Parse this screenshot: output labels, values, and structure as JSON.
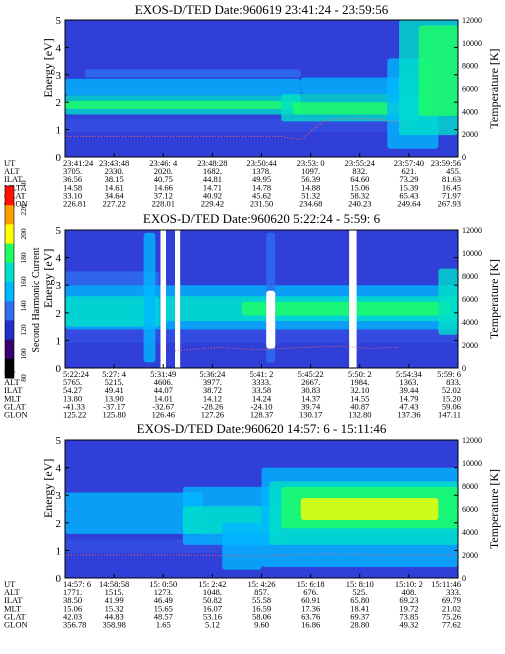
{
  "figure": {
    "colorbar": {
      "label": "Second Harmonic Current",
      "ticks": [
        "80",
        "100",
        "120",
        "140",
        "160",
        "180",
        "200",
        "220",
        "240"
      ],
      "colors": [
        "#000000",
        "#3a0070",
        "#2030c8",
        "#2f6ff0",
        "#00b8ff",
        "#00e0c8",
        "#20ff60",
        "#ffff00",
        "#ffa000",
        "#ff1000"
      ]
    },
    "ephemeris_labels": [
      "UT",
      "ALT",
      "ILAT",
      "MLT",
      "GLAT",
      "GLON"
    ]
  },
  "chart_data": [
    {
      "type": "heatmap",
      "title": "EXOS-D/TED   Date:960619  23:41:24 - 23:59:56",
      "ylabel": "Energy [eV]",
      "ylabel_right": "Temperature [K]",
      "ylim": [
        0,
        5
      ],
      "yticks": [
        "0",
        "1",
        "2",
        "3",
        "4",
        "5"
      ],
      "ylim_right": [
        0,
        12000
      ],
      "yticks_right": [
        "0",
        "2000",
        "4000",
        "6000",
        "8000",
        "10000",
        "12000"
      ],
      "x_ticks": [
        {
          "UT": "23:41:24",
          "ALT": "3705.",
          "ILAT": "36.56",
          "MLT": "14.58",
          "GLAT": "33.10",
          "GLON": "226.81"
        },
        {
          "UT": "23:43:48",
          "ALT": "2330.",
          "ILAT": "38.15",
          "MLT": "14.61",
          "GLAT": "34.64",
          "GLON": "227.22"
        },
        {
          "UT": "23:46: 4",
          "ALT": "2020.",
          "ILAT": "40.75",
          "MLT": "14.66",
          "GLAT": "37.12",
          "GLON": "228.01"
        },
        {
          "UT": "23:48:28",
          "ALT": "1682.",
          "ILAT": "44.81",
          "MLT": "14.71",
          "GLAT": "40.92",
          "GLON": "229.42"
        },
        {
          "UT": "23:50:44",
          "ALT": "1378.",
          "ILAT": "49.95",
          "MLT": "14.78",
          "GLAT": "45.62",
          "GLON": "231.50"
        },
        {
          "UT": "23:53: 0",
          "ALT": "1097.",
          "ILAT": "56.39",
          "MLT": "14.88",
          "GLAT": "51.32",
          "GLON": "234.68"
        },
        {
          "UT": "23:55:24",
          "ALT": "832.",
          "ILAT": "64.60",
          "MLT": "15.06",
          "GLAT": "58.32",
          "GLON": "240.23"
        },
        {
          "UT": "23:57:40",
          "ALT": "621.",
          "ILAT": "73.29",
          "MLT": "15.39",
          "GLAT": "65.43",
          "GLON": "249.64"
        },
        {
          "UT": "23:59:56",
          "ALT": "455.",
          "ILAT": "81.63",
          "MLT": "16.45",
          "GLAT": "71.97",
          "GLON": "267.93"
        }
      ],
      "bands": [
        {
          "x0": 0.0,
          "x1": 0.6,
          "y0": 2.25,
          "y1": 2.85,
          "level": 4
        },
        {
          "x0": 0.0,
          "x1": 0.6,
          "y0": 1.55,
          "y1": 2.25,
          "level": 5
        },
        {
          "x0": 0.0,
          "x1": 0.6,
          "y0": 1.75,
          "y1": 2.05,
          "level": 6
        },
        {
          "x0": 0.05,
          "x1": 0.6,
          "y0": 2.9,
          "y1": 3.2,
          "level": 3
        },
        {
          "x0": 0.55,
          "x1": 0.9,
          "y0": 1.3,
          "y1": 2.3,
          "level": 5
        },
        {
          "x0": 0.58,
          "x1": 0.85,
          "y0": 1.55,
          "y1": 2.0,
          "level": 6
        },
        {
          "x0": 0.6,
          "x1": 0.9,
          "y0": 2.3,
          "y1": 2.9,
          "level": 4
        },
        {
          "x0": 0.82,
          "x1": 0.95,
          "y0": 0.3,
          "y1": 3.6,
          "level": 4
        },
        {
          "x0": 0.85,
          "x1": 1.0,
          "y0": 0.8,
          "y1": 5.0,
          "level": 5
        },
        {
          "x0": 0.9,
          "x1": 1.0,
          "y0": 1.5,
          "y1": 4.8,
          "level": 6
        }
      ],
      "vstripes": [],
      "temperature_trace": {
        "x": [
          0.0,
          0.55,
          0.6,
          0.66,
          0.72,
          0.8,
          0.86
        ],
        "y": [
          1800,
          1800,
          1500,
          3200,
          3400,
          3300,
          3000
        ]
      }
    },
    {
      "type": "heatmap",
      "title": "EXOS-D/TED   Date:960620  5:22:24 - 5:59: 6",
      "ylabel": "Energy [eV]",
      "ylabel_right": "Temperature [K]",
      "ylim": [
        0,
        5
      ],
      "yticks": [
        "0",
        "1",
        "2",
        "3",
        "4",
        "5"
      ],
      "ylim_right": [
        0,
        12000
      ],
      "yticks_right": [
        "0",
        "2000",
        "4000",
        "6000",
        "8000",
        "10000",
        "12000"
      ],
      "x_ticks": [
        {
          "UT": "5:22:24",
          "ALT": "5765.",
          "ILAT": "54.27",
          "MLT": "13.80",
          "GLAT": "-41.33",
          "GLON": "125.22"
        },
        {
          "UT": "5:27: 4",
          "ALT": "5215.",
          "ILAT": "49.41",
          "MLT": "13.90",
          "GLAT": "-37.17",
          "GLON": "125.80"
        },
        {
          "UT": "5:31:49",
          "ALT": "4606.",
          "ILAT": "44.07",
          "MLT": "14.01",
          "GLAT": "-32.67",
          "GLON": "126.46"
        },
        {
          "UT": "5:36:24",
          "ALT": "3977.",
          "ILAT": "38.72",
          "MLT": "14.12",
          "GLAT": "-28.26",
          "GLON": "127.26"
        },
        {
          "UT": "5:41: 2",
          "ALT": "3333.",
          "ILAT": "33.58",
          "MLT": "14.24",
          "GLAT": "-24.10",
          "GLON": "128.37"
        },
        {
          "UT": "5:45:22",
          "ALT": "2667.",
          "ILAT": "30.83",
          "MLT": "14.37",
          "GLAT": "39.74",
          "GLON": "130.17"
        },
        {
          "UT": "5:50: 2",
          "ALT": "1984.",
          "ILAT": "32.10",
          "MLT": "14.55",
          "GLAT": "40.87",
          "GLON": "132.80"
        },
        {
          "UT": "5:54:34",
          "ALT": "1363.",
          "ILAT": "39.44",
          "MLT": "14.79",
          "GLAT": "47.43",
          "GLON": "137.36"
        },
        {
          "UT": "5:59: 6",
          "ALT": "833.",
          "ILAT": "52.02",
          "MLT": "15.20",
          "GLAT": "59.06",
          "GLON": "147.11"
        }
      ],
      "bands": [
        {
          "x0": 0.0,
          "x1": 1.0,
          "y0": 1.4,
          "y1": 3.0,
          "level": 4
        },
        {
          "x0": 0.0,
          "x1": 0.24,
          "y0": 1.5,
          "y1": 2.6,
          "level": 5
        },
        {
          "x0": 0.25,
          "x1": 1.0,
          "y0": 1.7,
          "y1": 2.6,
          "level": 5
        },
        {
          "x0": 0.45,
          "x1": 0.98,
          "y0": 1.9,
          "y1": 2.4,
          "level": 6
        },
        {
          "x0": 0.0,
          "x1": 0.24,
          "y0": 3.0,
          "y1": 3.5,
          "level": 3
        },
        {
          "x0": 0.95,
          "x1": 1.0,
          "y0": 1.2,
          "y1": 3.6,
          "level": 5
        },
        {
          "x0": 0.2,
          "x1": 0.23,
          "y0": 0.2,
          "y1": 4.9,
          "level": 4
        },
        {
          "x0": 0.512,
          "x1": 0.535,
          "y0": 0.2,
          "y1": 4.9,
          "level": 3
        }
      ],
      "vstripes": [
        {
          "x0": 0.243,
          "x1": 0.257,
          "color": "#ffffff"
        },
        {
          "x0": 0.28,
          "x1": 0.293,
          "color": "#ffffff"
        },
        {
          "x0": 0.723,
          "x1": 0.742,
          "color": "#ffffff"
        },
        {
          "x0": 0.512,
          "x1": 0.535,
          "y0": 0.7,
          "y1": 2.8,
          "color": "#ffffff"
        }
      ],
      "temperature_trace": {
        "x": [
          0.28,
          0.35,
          0.4,
          0.48,
          0.55,
          0.62,
          0.7,
          0.78,
          0.85
        ],
        "y": [
          1500,
          1700,
          1800,
          1600,
          1700,
          1800,
          1900,
          1700,
          1800
        ]
      }
    },
    {
      "type": "heatmap",
      "title": "EXOS-D/TED   Date:960620  14:57: 6 - 15:11:46",
      "ylabel": "Energy [eV]",
      "ylabel_right": "Temperature [K]",
      "ylim": [
        0,
        5
      ],
      "yticks": [
        "0",
        "1",
        "2",
        "3",
        "4",
        "5"
      ],
      "ylim_right": [
        0,
        12000
      ],
      "yticks_right": [
        "0",
        "2000",
        "4000",
        "6000",
        "8000",
        "10000",
        "12000"
      ],
      "x_ticks": [
        {
          "UT": "14:57: 6",
          "ALT": "1771.",
          "ILAT": "38.50",
          "MLT": "15.06",
          "GLAT": "42.03",
          "GLON": "356.78"
        },
        {
          "UT": "14:58:58",
          "ALT": "1515.",
          "ILAT": "41.99",
          "MLT": "15.32",
          "GLAT": "44.83",
          "GLON": "358.98"
        },
        {
          "UT": "15: 0:50",
          "ALT": "1273.",
          "ILAT": "46.49",
          "MLT": "15.65",
          "GLAT": "48.57",
          "GLON": "1.65"
        },
        {
          "UT": "15: 2:42",
          "ALT": "1048.",
          "ILAT": "50.82",
          "MLT": "16.07",
          "GLAT": "53.16",
          "GLON": "5.12"
        },
        {
          "UT": "15: 4:26",
          "ALT": "857.",
          "ILAT": "55.58",
          "MLT": "16.59",
          "GLAT": "58.06",
          "GLON": "9.60"
        },
        {
          "UT": "15: 6:18",
          "ALT": "676.",
          "ILAT": "60.91",
          "MLT": "17.36",
          "GLAT": "63.76",
          "GLON": "16.86"
        },
        {
          "UT": "15: 8:10",
          "ALT": "525.",
          "ILAT": "65.80",
          "MLT": "18.41",
          "GLAT": "69.37",
          "GLON": "28.80"
        },
        {
          "UT": "15:10: 2",
          "ALT": "408.",
          "ILAT": "69.23",
          "MLT": "19.72",
          "GLAT": "73.85",
          "GLON": "49.32"
        },
        {
          "UT": "15:11:46",
          "ALT": "333.",
          "ILAT": "69.79",
          "MLT": "21.02",
          "GLAT": "75.26",
          "GLON": "77.62"
        }
      ],
      "bands": [
        {
          "x0": 0.0,
          "x1": 0.35,
          "y0": 2.4,
          "y1": 3.1,
          "level": 4
        },
        {
          "x0": 0.0,
          "x1": 0.35,
          "y0": 1.6,
          "y1": 2.4,
          "level": 4
        },
        {
          "x0": 0.3,
          "x1": 0.55,
          "y0": 1.2,
          "y1": 3.3,
          "level": 4
        },
        {
          "x0": 0.3,
          "x1": 0.55,
          "y0": 1.6,
          "y1": 2.6,
          "level": 5
        },
        {
          "x0": 0.5,
          "x1": 1.0,
          "y0": 0.4,
          "y1": 4.0,
          "level": 4
        },
        {
          "x0": 0.52,
          "x1": 1.0,
          "y0": 1.2,
          "y1": 3.5,
          "level": 5
        },
        {
          "x0": 0.55,
          "x1": 1.0,
          "y0": 1.8,
          "y1": 3.3,
          "level": 6
        },
        {
          "x0": 0.6,
          "x1": 0.95,
          "y0": 2.1,
          "y1": 2.9,
          "level": 7
        },
        {
          "x0": 0.4,
          "x1": 0.5,
          "y0": 0.3,
          "y1": 2.0,
          "level": 4
        }
      ],
      "vstripes": [],
      "temperature_trace": {
        "x": [
          0.0,
          0.3,
          0.5,
          0.65,
          0.8,
          1.0
        ],
        "y": [
          2000,
          2000,
          1900,
          2100,
          2000,
          2000
        ]
      }
    }
  ]
}
